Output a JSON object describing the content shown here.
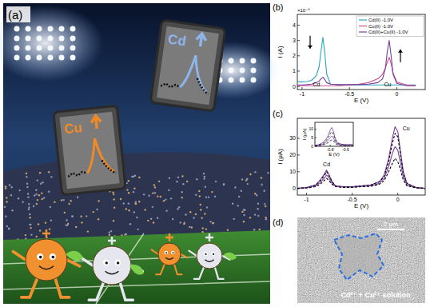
{
  "chart_data": [
    {
      "type": "line",
      "label": "(b)",
      "x_label": "E (V)",
      "y_label": "I (A)",
      "y_multiplier": "×10⁻⁵",
      "annotations": [
        "Cd",
        "Cu"
      ],
      "legend": "upper right",
      "xlim": [
        -1.05,
        0.3
      ],
      "xticks": [
        -1,
        -0.5,
        0
      ],
      "ylim": [
        -0.2,
        4.7
      ],
      "yticks": [
        0,
        1,
        2,
        3,
        4
      ],
      "x": [
        -1.05,
        -1.0,
        -0.95,
        -0.9,
        -0.85,
        -0.82,
        -0.8,
        -0.78,
        -0.76,
        -0.74,
        -0.7,
        -0.6,
        -0.5,
        -0.4,
        -0.3,
        -0.2,
        -0.15,
        -0.12,
        -0.1,
        -0.08,
        -0.06,
        -0.04,
        0,
        0.1,
        0.2
      ],
      "series": [
        {
          "name": "Cd(II) -1.0V",
          "color": "#2aa7b8",
          "line_style": "solid",
          "values": [
            0.3,
            0.3,
            0.32,
            0.4,
            0.7,
            1.3,
            2.3,
            3.2,
            2.2,
            0.8,
            0.15,
            0.1,
            0.1,
            0.1,
            0.1,
            0.1,
            0.1,
            0.1,
            0.1,
            0.1,
            0.1,
            0.1,
            0.1,
            0.1,
            0.1
          ]
        },
        {
          "name": "Cu(II) -1.0V",
          "color": "#d0508a",
          "line_style": "solid",
          "values": [
            0.05,
            0.05,
            0.05,
            0.05,
            0.05,
            0.05,
            0.05,
            0.05,
            0.05,
            0.05,
            0.05,
            0.05,
            0.1,
            0.15,
            0.25,
            0.5,
            0.8,
            1.2,
            1.6,
            1.9,
            1.5,
            0.9,
            0.3,
            0.1,
            0.05
          ]
        },
        {
          "name": "Cd(II)+Cu(II) -1.0V",
          "color": "#7a3fa0",
          "line_style": "solid",
          "values": [
            0.1,
            0.1,
            0.12,
            0.15,
            0.25,
            0.35,
            0.5,
            0.6,
            0.45,
            0.25,
            0.15,
            0.12,
            0.12,
            0.12,
            0.15,
            0.25,
            0.5,
            1.2,
            2.3,
            3.0,
            2.0,
            0.8,
            0.2,
            0.05,
            0.05
          ]
        }
      ]
    },
    {
      "type": "line",
      "label": "(c)",
      "x_label": "E (V)",
      "y_label": "I (μA)",
      "annotations": [
        "Cd",
        "Cu"
      ],
      "xlim": [
        -1.1,
        0.3
      ],
      "xticks": [
        -1,
        -0.5,
        0
      ],
      "ylim": [
        -4,
        42
      ],
      "yticks": [
        0,
        10,
        20,
        30
      ],
      "x": [
        -1.1,
        -1.0,
        -0.9,
        -0.85,
        -0.8,
        -0.78,
        -0.76,
        -0.72,
        -0.68,
        -0.6,
        -0.5,
        -0.4,
        -0.3,
        -0.2,
        -0.15,
        -0.1,
        -0.06,
        -0.03,
        0,
        0.03,
        0.06,
        0.1,
        0.2,
        0.3
      ],
      "series": [
        {
          "color": "#7a3fa0",
          "line_style": "solid",
          "values": [
            0,
            0.5,
            2,
            5,
            9,
            11,
            9,
            4,
            1.5,
            1,
            1,
            1.5,
            2,
            4,
            8,
            18,
            30,
            37,
            34,
            22,
            10,
            3,
            0.5,
            0
          ]
        },
        {
          "color": "#000000",
          "line_style": "dashed",
          "values": [
            0,
            0.5,
            2,
            4.5,
            8,
            10,
            8.5,
            4,
            1.5,
            1,
            1,
            1.5,
            2,
            4,
            7,
            16,
            27,
            33,
            31,
            20,
            9,
            3,
            0.5,
            0
          ]
        },
        {
          "color": "#7a3fa0",
          "line_style": "solid",
          "values": [
            0,
            0.4,
            1.5,
            3.5,
            6.5,
            8,
            7,
            3,
            1.2,
            0.8,
            0.8,
            1.2,
            1.5,
            3,
            6,
            13,
            21,
            25,
            23,
            15,
            7,
            2,
            0.4,
            0
          ]
        },
        {
          "color": "#000000",
          "line_style": "dashed",
          "values": [
            0,
            0.3,
            1,
            2.5,
            5,
            6,
            5,
            2.5,
            1,
            0.6,
            0.6,
            1,
            1.2,
            2.5,
            4.5,
            10,
            15,
            18,
            16,
            11,
            5,
            1.5,
            0.3,
            0
          ]
        }
      ]
    },
    {
      "type": "line",
      "x_label": "E (V)",
      "y_label": "I (μA)",
      "xlim": [
        -1.0,
        -0.5
      ],
      "xticks": [
        -0.8,
        -0.6
      ],
      "ylim": [
        0,
        14
      ],
      "yticks": [
        0,
        5,
        10
      ],
      "x": [
        -1.0,
        -0.95,
        -0.9,
        -0.85,
        -0.82,
        -0.8,
        -0.78,
        -0.76,
        -0.74,
        -0.72,
        -0.7,
        -0.65,
        -0.6,
        -0.55,
        -0.5
      ],
      "series": [
        {
          "color": "#7a3fa0",
          "line_style": "solid",
          "values": [
            0.5,
            1,
            2,
            4.5,
            7,
            9.5,
            11,
            9,
            5.5,
            3,
            2,
            1.2,
            1,
            1,
            1
          ]
        },
        {
          "color": "#000000",
          "line_style": "dashed",
          "values": [
            0.4,
            0.8,
            1.5,
            3.5,
            5.5,
            7.5,
            8.5,
            7,
            4.5,
            2.5,
            1.6,
            1,
            0.8,
            0.8,
            0.8
          ]
        },
        {
          "color": "#7a3fa0",
          "line_style": "solid",
          "values": [
            0.3,
            0.6,
            1.2,
            2.5,
            4,
            5,
            6,
            5,
            3,
            1.8,
            1.2,
            0.8,
            0.6,
            0.6,
            0.6
          ]
        },
        {
          "color": "#000000",
          "line_style": "dashed",
          "values": [
            0.2,
            0.4,
            0.8,
            1.6,
            2.5,
            3.2,
            3.8,
            3.2,
            2,
            1.2,
            0.8,
            0.5,
            0.4,
            0.4,
            0.4
          ]
        }
      ]
    }
  ],
  "illustration": {
    "label": "(a)",
    "cards": [
      "Cu",
      "Cd"
    ]
  },
  "image": {
    "label": "(d)",
    "scale_bar": "2 μm",
    "caption": "Cd²⁺ + Cu²⁺ solution"
  }
}
